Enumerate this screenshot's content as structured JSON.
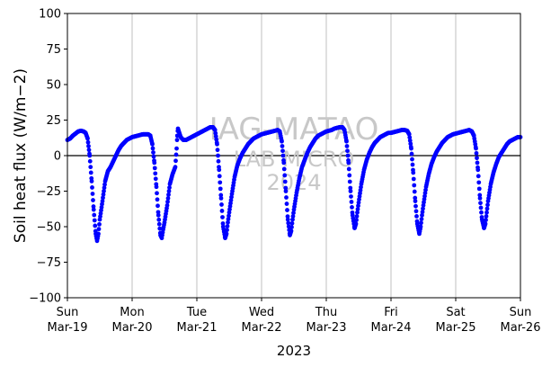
{
  "chart_data": {
    "type": "scatter",
    "ylabel": "Soil heat flux (W/m−2)",
    "xlabel": "2023",
    "ylim": [
      -100,
      100
    ],
    "xlim": [
      "2023-03-19 00:00",
      "2023-03-26 00:00"
    ],
    "yticks": [
      100,
      75,
      50,
      25,
      0,
      -25,
      -50,
      -75,
      -100
    ],
    "xticks": [
      {
        "day": "Sun",
        "date": "Mar-19",
        "value": "2023-03-19"
      },
      {
        "day": "Mon",
        "date": "Mar-20",
        "value": "2023-03-20"
      },
      {
        "day": "Tue",
        "date": "Mar-21",
        "value": "2023-03-21"
      },
      {
        "day": "Wed",
        "date": "Mar-22",
        "value": "2023-03-22"
      },
      {
        "day": "Thu",
        "date": "Mar-23",
        "value": "2023-03-23"
      },
      {
        "day": "Fri",
        "date": "Mar-24",
        "value": "2023-03-24"
      },
      {
        "day": "Sat",
        "date": "Mar-25",
        "value": "2023-03-25"
      },
      {
        "day": "Sun",
        "date": "Mar-26",
        "value": "2023-03-26"
      }
    ],
    "grid": "vertical",
    "zero_line": 0,
    "marker_color": "#0000ff",
    "watermark": [
      "IAG-MATAO",
      "LAB MICRO",
      "2024"
    ],
    "series": [
      {
        "points": [
          [
            "2023-03-19 00:00",
            11
          ],
          [
            "2023-03-19 01:00",
            12
          ],
          [
            "2023-03-19 02:00",
            14
          ],
          [
            "2023-03-19 03:00",
            15.5
          ],
          [
            "2023-03-19 04:00",
            17
          ],
          [
            "2023-03-19 05:00",
            17.5
          ],
          [
            "2023-03-19 06:00",
            17
          ],
          [
            "2023-03-19 06:45",
            16
          ],
          [
            "2023-03-19 07:30",
            12
          ],
          [
            "2023-03-19 08:15",
            0
          ],
          [
            "2023-03-19 09:00",
            -18
          ],
          [
            "2023-03-19 09:45",
            -38
          ],
          [
            "2023-03-19 10:30",
            -55
          ],
          [
            "2023-03-19 11:00",
            -60
          ],
          [
            "2023-03-19 11:30",
            -55
          ],
          [
            "2023-03-19 12:00",
            -45
          ],
          [
            "2023-03-19 13:00",
            -32
          ],
          [
            "2023-03-19 14:00",
            -18
          ],
          [
            "2023-03-19 15:00",
            -11
          ],
          [
            "2023-03-19 16:00",
            -8
          ],
          [
            "2023-03-19 17:00",
            -4
          ],
          [
            "2023-03-19 18:00",
            0
          ],
          [
            "2023-03-19 19:00",
            4
          ],
          [
            "2023-03-19 20:00",
            7
          ],
          [
            "2023-03-19 21:00",
            9
          ],
          [
            "2023-03-19 22:00",
            11
          ],
          [
            "2023-03-19 23:00",
            12
          ],
          [
            "2023-03-20 00:00",
            13
          ],
          [
            "2023-03-20 01:00",
            13.5
          ],
          [
            "2023-03-20 02:00",
            14
          ],
          [
            "2023-03-20 03:00",
            14.5
          ],
          [
            "2023-03-20 04:00",
            15
          ],
          [
            "2023-03-20 05:00",
            15
          ],
          [
            "2023-03-20 06:00",
            15
          ],
          [
            "2023-03-20 06:45",
            14
          ],
          [
            "2023-03-20 07:30",
            8
          ],
          [
            "2023-03-20 08:15",
            -5
          ],
          [
            "2023-03-20 09:00",
            -22
          ],
          [
            "2023-03-20 09:45",
            -42
          ],
          [
            "2023-03-20 10:30",
            -56
          ],
          [
            "2023-03-20 11:00",
            -58
          ],
          [
            "2023-03-20 11:30",
            -52
          ],
          [
            "2023-03-20 12:00",
            -47
          ],
          [
            "2023-03-20 13:00",
            -35
          ],
          [
            "2023-03-20 14:00",
            -20
          ],
          [
            "2023-03-20 15:00",
            -13
          ],
          [
            "2023-03-20 16:00",
            -8
          ],
          [
            "2023-03-20 16:30",
            5
          ],
          [
            "2023-03-20 16:45",
            14
          ],
          [
            "2023-03-20 17:00",
            19
          ],
          [
            "2023-03-20 18:00",
            13
          ],
          [
            "2023-03-20 19:00",
            11
          ],
          [
            "2023-03-20 20:00",
            11
          ],
          [
            "2023-03-20 21:00",
            12
          ],
          [
            "2023-03-20 22:00",
            13
          ],
          [
            "2023-03-20 23:00",
            14
          ],
          [
            "2023-03-21 00:00",
            15
          ],
          [
            "2023-03-21 01:00",
            16
          ],
          [
            "2023-03-21 02:00",
            17
          ],
          [
            "2023-03-21 03:00",
            18
          ],
          [
            "2023-03-21 04:00",
            19
          ],
          [
            "2023-03-21 05:00",
            20
          ],
          [
            "2023-03-21 06:00",
            20
          ],
          [
            "2023-03-21 06:45",
            18
          ],
          [
            "2023-03-21 07:30",
            8
          ],
          [
            "2023-03-21 08:15",
            -10
          ],
          [
            "2023-03-21 09:00",
            -30
          ],
          [
            "2023-03-21 09:45",
            -50
          ],
          [
            "2023-03-21 10:30",
            -58
          ],
          [
            "2023-03-21 11:00",
            -55
          ],
          [
            "2023-03-21 11:30",
            -47
          ],
          [
            "2023-03-21 12:00",
            -40
          ],
          [
            "2023-03-21 13:00",
            -27
          ],
          [
            "2023-03-21 14:00",
            -15
          ],
          [
            "2023-03-21 15:00",
            -7
          ],
          [
            "2023-03-21 16:00",
            -2
          ],
          [
            "2023-03-21 17:00",
            2
          ],
          [
            "2023-03-21 18:00",
            5
          ],
          [
            "2023-03-21 19:00",
            8
          ],
          [
            "2023-03-21 20:00",
            10
          ],
          [
            "2023-03-21 21:00",
            12
          ],
          [
            "2023-03-21 22:00",
            13
          ],
          [
            "2023-03-21 23:00",
            14
          ],
          [
            "2023-03-22 00:00",
            15
          ],
          [
            "2023-03-22 01:00",
            15.5
          ],
          [
            "2023-03-22 02:00",
            16
          ],
          [
            "2023-03-22 03:00",
            16.5
          ],
          [
            "2023-03-22 04:00",
            17
          ],
          [
            "2023-03-22 05:00",
            17.5
          ],
          [
            "2023-03-22 06:00",
            18
          ],
          [
            "2023-03-22 06:45",
            17
          ],
          [
            "2023-03-22 07:30",
            10
          ],
          [
            "2023-03-22 08:15",
            -5
          ],
          [
            "2023-03-22 09:00",
            -25
          ],
          [
            "2023-03-22 09:45",
            -45
          ],
          [
            "2023-03-22 10:30",
            -56
          ],
          [
            "2023-03-22 11:00",
            -53
          ],
          [
            "2023-03-22 11:30",
            -45
          ],
          [
            "2023-03-22 12:00",
            -38
          ],
          [
            "2023-03-22 13:00",
            -26
          ],
          [
            "2023-03-22 14:00",
            -16
          ],
          [
            "2023-03-22 15:00",
            -8
          ],
          [
            "2023-03-22 16:00",
            -3
          ],
          [
            "2023-03-22 17:00",
            2
          ],
          [
            "2023-03-22 18:00",
            6
          ],
          [
            "2023-03-22 19:00",
            9
          ],
          [
            "2023-03-22 20:00",
            12
          ],
          [
            "2023-03-22 21:00",
            14
          ],
          [
            "2023-03-22 22:00",
            15
          ],
          [
            "2023-03-22 23:00",
            16
          ],
          [
            "2023-03-23 00:00",
            17
          ],
          [
            "2023-03-23 01:00",
            17.5
          ],
          [
            "2023-03-23 02:00",
            18
          ],
          [
            "2023-03-23 03:00",
            19
          ],
          [
            "2023-03-23 04:00",
            19.5
          ],
          [
            "2023-03-23 05:00",
            20
          ],
          [
            "2023-03-23 06:00",
            20
          ],
          [
            "2023-03-23 06:45",
            18
          ],
          [
            "2023-03-23 07:30",
            10
          ],
          [
            "2023-03-23 08:15",
            -5
          ],
          [
            "2023-03-23 09:00",
            -25
          ],
          [
            "2023-03-23 09:45",
            -42
          ],
          [
            "2023-03-23 10:30",
            -51
          ],
          [
            "2023-03-23 11:00",
            -48
          ],
          [
            "2023-03-23 11:30",
            -40
          ],
          [
            "2023-03-23 12:00",
            -33
          ],
          [
            "2023-03-23 13:00",
            -20
          ],
          [
            "2023-03-23 14:00",
            -10
          ],
          [
            "2023-03-23 15:00",
            -3
          ],
          [
            "2023-03-23 16:00",
            2
          ],
          [
            "2023-03-23 17:00",
            6
          ],
          [
            "2023-03-23 18:00",
            9
          ],
          [
            "2023-03-23 19:00",
            11
          ],
          [
            "2023-03-23 20:00",
            13
          ],
          [
            "2023-03-23 21:00",
            14
          ],
          [
            "2023-03-23 22:00",
            15
          ],
          [
            "2023-03-23 23:00",
            16
          ],
          [
            "2023-03-24 00:00",
            16
          ],
          [
            "2023-03-24 01:00",
            16.5
          ],
          [
            "2023-03-24 02:00",
            17
          ],
          [
            "2023-03-24 03:00",
            17.5
          ],
          [
            "2023-03-24 04:00",
            18
          ],
          [
            "2023-03-24 05:00",
            18
          ],
          [
            "2023-03-24 06:00",
            17.5
          ],
          [
            "2023-03-24 06:45",
            15
          ],
          [
            "2023-03-24 07:30",
            5
          ],
          [
            "2023-03-24 08:15",
            -12
          ],
          [
            "2023-03-24 09:00",
            -32
          ],
          [
            "2023-03-24 09:45",
            -48
          ],
          [
            "2023-03-24 10:30",
            -55
          ],
          [
            "2023-03-24 11:00",
            -50
          ],
          [
            "2023-03-24 11:30",
            -42
          ],
          [
            "2023-03-24 12:00",
            -35
          ],
          [
            "2023-03-24 13:00",
            -22
          ],
          [
            "2023-03-24 14:00",
            -13
          ],
          [
            "2023-03-24 15:00",
            -6
          ],
          [
            "2023-03-24 16:00",
            -1
          ],
          [
            "2023-03-24 17:00",
            3
          ],
          [
            "2023-03-24 18:00",
            6
          ],
          [
            "2023-03-24 19:00",
            9
          ],
          [
            "2023-03-24 20:00",
            11
          ],
          [
            "2023-03-24 21:00",
            13
          ],
          [
            "2023-03-24 22:00",
            14
          ],
          [
            "2023-03-24 23:00",
            15
          ],
          [
            "2023-03-25 00:00",
            15.5
          ],
          [
            "2023-03-25 01:00",
            16
          ],
          [
            "2023-03-25 02:00",
            16.5
          ],
          [
            "2023-03-25 03:00",
            17
          ],
          [
            "2023-03-25 04:00",
            17.5
          ],
          [
            "2023-03-25 05:00",
            18
          ],
          [
            "2023-03-25 06:00",
            17
          ],
          [
            "2023-03-25 06:45",
            14
          ],
          [
            "2023-03-25 07:30",
            5
          ],
          [
            "2023-03-25 08:15",
            -10
          ],
          [
            "2023-03-25 09:00",
            -30
          ],
          [
            "2023-03-25 09:45",
            -45
          ],
          [
            "2023-03-25 10:30",
            -51
          ],
          [
            "2023-03-25 11:00",
            -48
          ],
          [
            "2023-03-25 11:30",
            -40
          ],
          [
            "2023-03-25 12:00",
            -32
          ],
          [
            "2023-03-25 13:00",
            -20
          ],
          [
            "2023-03-25 14:00",
            -12
          ],
          [
            "2023-03-25 15:00",
            -6
          ],
          [
            "2023-03-25 16:00",
            -1
          ],
          [
            "2023-03-25 17:00",
            2
          ],
          [
            "2023-03-25 18:00",
            5
          ],
          [
            "2023-03-25 19:00",
            8
          ],
          [
            "2023-03-25 20:00",
            10
          ],
          [
            "2023-03-25 21:00",
            11
          ],
          [
            "2023-03-25 22:00",
            12
          ],
          [
            "2023-03-25 23:00",
            13
          ],
          [
            "2023-03-26 00:00",
            13
          ]
        ]
      }
    ]
  }
}
